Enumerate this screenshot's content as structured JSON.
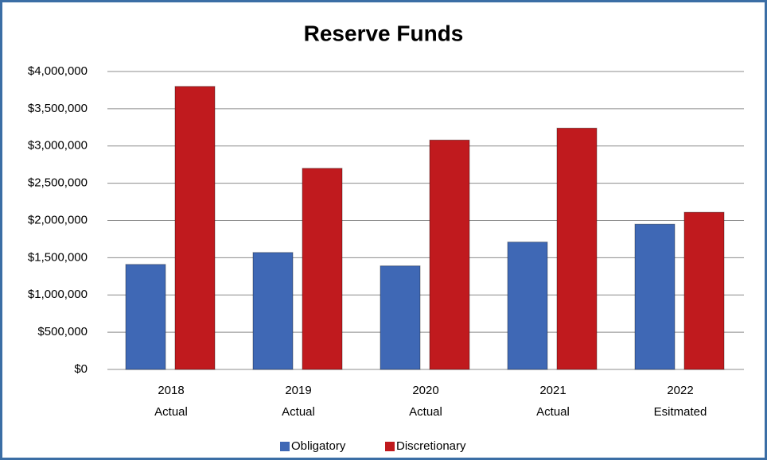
{
  "chart_data": {
    "type": "bar",
    "title": "Reserve Funds",
    "categories": [
      [
        "2018",
        "Actual"
      ],
      [
        "2019",
        "Actual"
      ],
      [
        "2020",
        "Actual"
      ],
      [
        "2021",
        "Actual"
      ],
      [
        "2022",
        "Esitmated"
      ]
    ],
    "series": [
      {
        "name": "Obligatory",
        "color": "#3f68b5",
        "values": [
          1410000,
          1570000,
          1390000,
          1710000,
          1950000
        ]
      },
      {
        "name": "Discretionary",
        "color": "#c01a1e",
        "values": [
          3800000,
          2700000,
          3080000,
          3240000,
          2110000
        ]
      }
    ],
    "ylim": [
      0,
      4000000
    ],
    "yticks": [
      {
        "value": 0,
        "label": "$0"
      },
      {
        "value": 500000,
        "label": "$500,000"
      },
      {
        "value": 1000000,
        "label": "$1,000,000"
      },
      {
        "value": 1500000,
        "label": "$1,500,000"
      },
      {
        "value": 2000000,
        "label": "$2,000,000"
      },
      {
        "value": 2500000,
        "label": "$2,500,000"
      },
      {
        "value": 3000000,
        "label": "$3,000,000"
      },
      {
        "value": 3500000,
        "label": "$3,500,000"
      },
      {
        "value": 4000000,
        "label": "$4,000,000"
      }
    ],
    "grid": true,
    "legend": "bottom"
  }
}
